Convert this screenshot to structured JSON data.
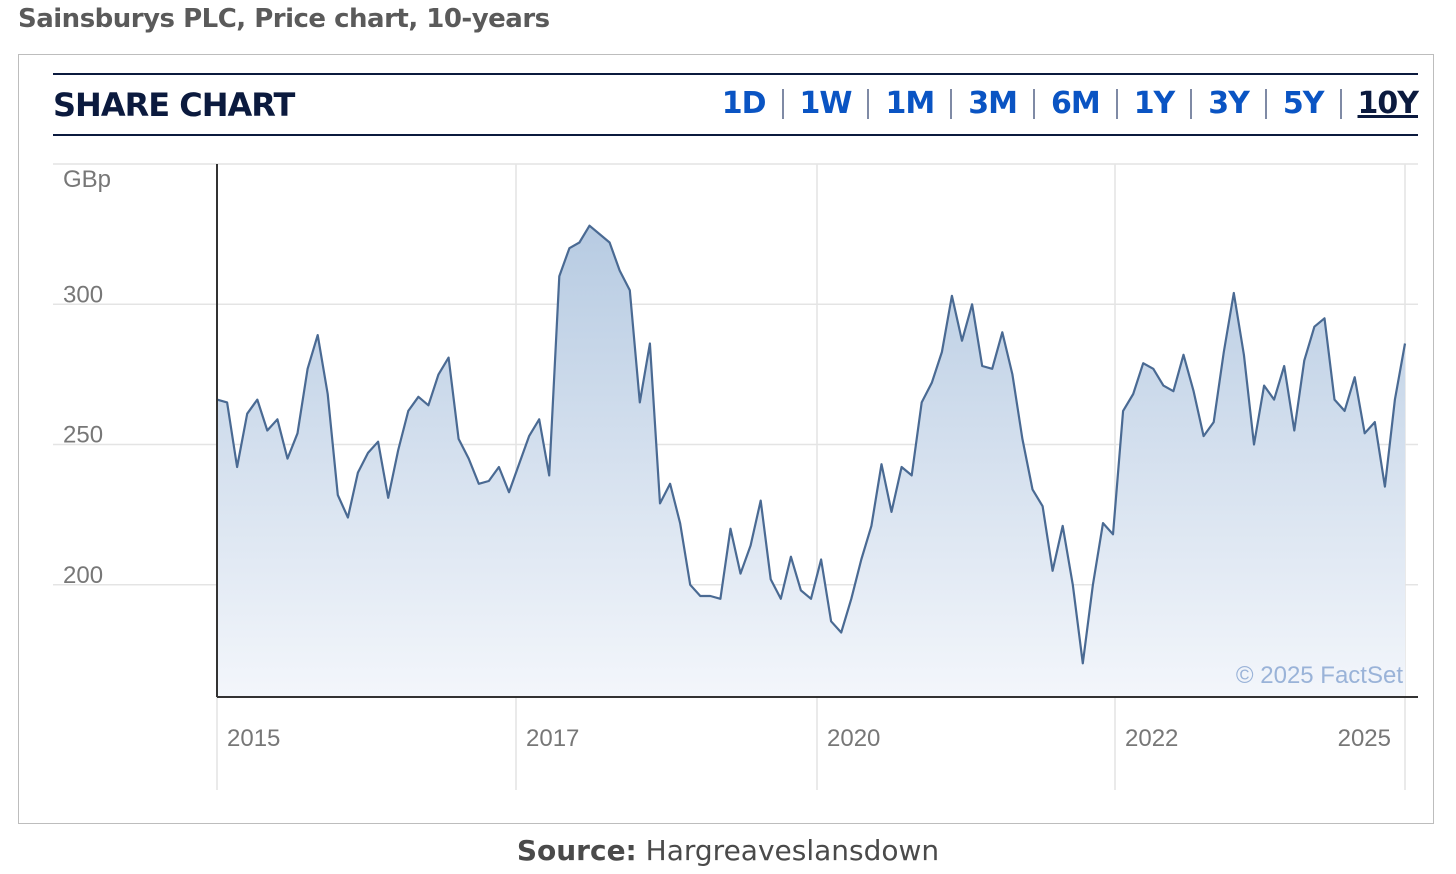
{
  "title": "Sainsburys PLC, Price chart, 10-years",
  "panel": {
    "label": "SHARE CHART",
    "ranges": [
      "1D",
      "1W",
      "1M",
      "3M",
      "6M",
      "1Y",
      "3Y",
      "5Y",
      "10Y"
    ],
    "active_range": "10Y"
  },
  "source": {
    "label": "Source:",
    "value": "Hargreaveslansdown"
  },
  "colors": {
    "line": "#4a6a93",
    "fill_top": "#b7cbe2",
    "fill_bottom": "#f3f6fb",
    "header": "#0b1a3e",
    "link": "#0a54c3"
  },
  "chart_data": {
    "type": "area",
    "unit_label": "GBp",
    "watermark": "© 2025 FactSet",
    "xticks": [
      "2015",
      "2017",
      "2020",
      "2022",
      "2025"
    ],
    "yticks": [
      200,
      250,
      300
    ],
    "ylim": [
      160,
      350
    ],
    "series": [
      {
        "values": [
          266,
          265,
          242,
          261,
          266,
          255,
          259,
          245,
          254,
          277,
          289,
          268,
          232,
          224,
          240,
          247,
          251,
          231,
          248,
          262,
          267,
          264,
          275,
          281,
          252,
          245,
          236,
          237,
          242,
          233,
          243,
          253,
          259,
          239,
          310,
          320,
          322,
          328,
          325,
          322,
          312,
          305,
          265,
          286,
          229,
          236,
          222,
          200,
          196,
          196,
          195,
          220,
          204,
          214,
          230,
          202,
          195,
          210,
          198,
          195,
          209,
          187,
          183,
          195,
          209,
          221,
          243,
          226,
          242,
          239,
          265,
          272,
          283,
          303,
          287,
          300,
          278,
          277,
          290,
          275,
          252,
          234,
          228,
          205,
          221,
          200,
          172,
          200,
          222,
          218,
          262,
          268,
          279,
          277,
          271,
          269,
          282,
          269,
          253,
          258,
          283,
          304,
          282,
          250,
          271,
          266,
          278,
          255,
          280,
          292,
          295,
          266,
          262,
          274,
          254,
          258,
          235,
          266,
          286
        ]
      }
    ]
  }
}
